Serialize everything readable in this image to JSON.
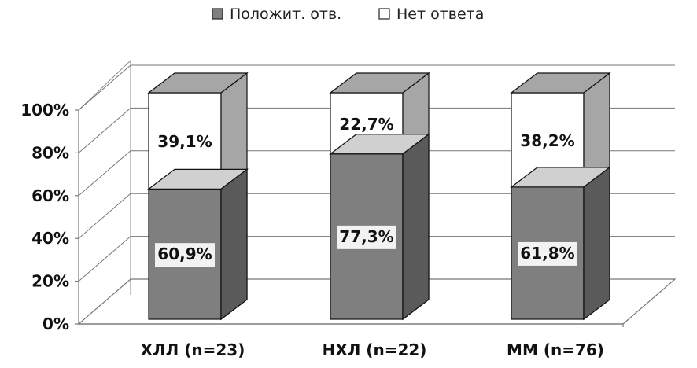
{
  "chart_data": {
    "type": "bar",
    "stacked": true,
    "style": "3d",
    "categories": [
      "ХЛЛ (n=23)",
      "НХЛ (n=22)",
      "ММ (n=76)"
    ],
    "series": [
      {
        "name": "Положит. отв.",
        "values": [
          60.9,
          77.3,
          61.8
        ],
        "labels": [
          "60,9%",
          "77,3%",
          "61,8%"
        ],
        "color": "#7f7f7f"
      },
      {
        "name": "Нет ответа",
        "values": [
          39.1,
          22.7,
          38.2
        ],
        "labels": [
          "39,1%",
          "22,7%",
          "38,2%"
        ],
        "color": "#ffffff"
      }
    ],
    "yticks": [
      "0%",
      "20%",
      "40%",
      "60%",
      "80%",
      "100%"
    ],
    "ylim": [
      0,
      100
    ],
    "grid": true,
    "legend": "top-center"
  }
}
